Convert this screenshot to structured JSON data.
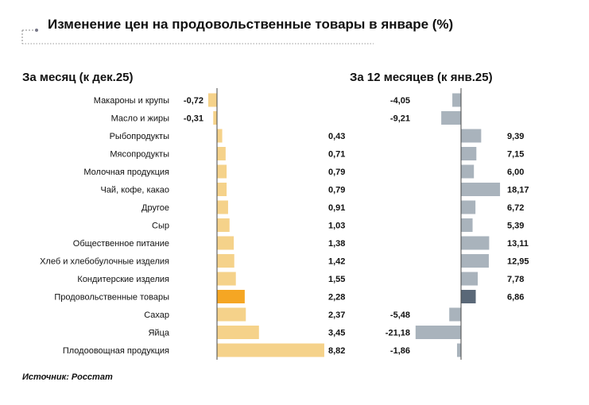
{
  "chart_data": {
    "type": "bar",
    "orientation": "horizontal",
    "title": "Изменение цен на продовольственные товары в январе (%)",
    "source": "Источник: Росстат",
    "categories": [
      "Макароны и крупы",
      "Масло и жиры",
      "Рыбопродукты",
      "Мясопродукты",
      "Молочная продукция",
      "Чай, кофе, какао",
      "Другое",
      "Сыр",
      "Общественное питание",
      "Хлеб и хлебобулочные изделия",
      "Кондитерские изделия",
      "Продовольственные товары",
      "Сахар",
      "Яйца",
      "Плодоовощная продукция"
    ],
    "panels": [
      {
        "title": "За месяц (к дек.25)",
        "values": [
          -0.72,
          -0.31,
          0.43,
          0.71,
          0.79,
          0.79,
          0.91,
          1.03,
          1.38,
          1.42,
          1.55,
          2.28,
          2.37,
          3.45,
          8.82
        ],
        "labels": [
          "-0,72",
          "-0,31",
          "0,43",
          "0,71",
          "0,79",
          "0,79",
          "0,91",
          "1,03",
          "1,38",
          "1,42",
          "1,55",
          "2,28",
          "2,37",
          "3,45",
          "8,82"
        ],
        "color": "#f5d28a",
        "highlight_color": "#f5a623"
      },
      {
        "title": "За 12 месяцев (к янв.25)",
        "values": [
          -4.05,
          -9.21,
          9.39,
          7.15,
          6.0,
          18.17,
          6.72,
          5.39,
          13.11,
          12.95,
          7.78,
          6.86,
          -5.48,
          -21.18,
          -1.86
        ],
        "labels": [
          "-4,05",
          "-9,21",
          "9,39",
          "7,15",
          "6,00",
          "18,17",
          "6,72",
          "5,39",
          "13,11",
          "12,95",
          "7,78",
          "6,86",
          "-5,48",
          "-21,18",
          "-1,86"
        ],
        "color": "#a9b3bc",
        "highlight_color": "#5a6878"
      }
    ],
    "highlight_category": "Продовольственные товары",
    "grid": false,
    "legend": "none"
  }
}
